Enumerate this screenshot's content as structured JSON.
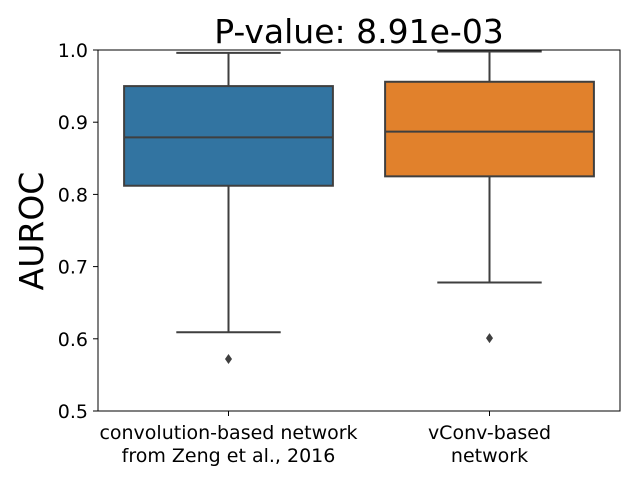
{
  "chart_data": {
    "type": "box",
    "title": "P-value: 8.91e-03",
    "ylabel": "AUROC",
    "xlabel": "",
    "ylim": [
      0.5,
      1.0
    ],
    "yticks": [
      "0.5",
      "0.6",
      "0.7",
      "0.8",
      "0.9",
      "1.0"
    ],
    "categories": [
      [
        "convolution-based network",
        "from Zeng et al., 2016"
      ],
      [
        "vConv-based",
        "network"
      ]
    ],
    "boxes": [
      {
        "q1": 0.812,
        "median": 0.879,
        "q3": 0.95,
        "whisker_low": 0.609,
        "whisker_high": 0.996,
        "outliers": [
          0.572
        ],
        "color": "#3274a1"
      },
      {
        "q1": 0.825,
        "median": 0.887,
        "q3": 0.956,
        "whisker_low": 0.678,
        "whisker_high": 0.998,
        "outliers": [
          0.601
        ],
        "color": "#e1812c"
      }
    ],
    "grid": false,
    "legend": "none"
  }
}
